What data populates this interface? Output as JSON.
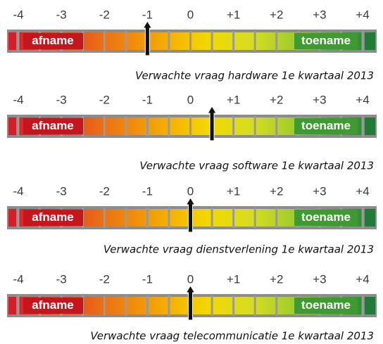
{
  "chart_data": [
    {
      "type": "gauge",
      "title": "Verwachte vraag hardware 1e kwartaal 2013",
      "value": -1,
      "left_label": "afname",
      "right_label": "toename",
      "xlim": [
        -4,
        4
      ],
      "xticks": [
        -4,
        -3,
        -2,
        -1,
        0,
        {
          "value": 1,
          "label": "+1"
        },
        {
          "value": 2,
          "label": "+2"
        },
        {
          "value": 3,
          "label": "+3"
        },
        {
          "value": 4,
          "label": "+4"
        }
      ]
    },
    {
      "type": "gauge",
      "title": "Verwachte vraag software 1e kwartaal 2013",
      "value": 0.5,
      "left_label": "afname",
      "right_label": "toename",
      "xlim": [
        -4,
        4
      ],
      "xticks": [
        -4,
        -3,
        -2,
        -1,
        0,
        {
          "value": 1,
          "label": "+1"
        },
        {
          "value": 2,
          "label": "+2"
        },
        {
          "value": 3,
          "label": "+3"
        },
        {
          "value": 4,
          "label": "+4"
        }
      ]
    },
    {
      "type": "gauge",
      "title": "Verwachte vraag dienstverlening 1e kwartaal 2013",
      "value": 0,
      "left_label": "afname",
      "right_label": "toename",
      "xlim": [
        -4,
        4
      ],
      "xticks": [
        -4,
        -3,
        -2,
        -1,
        0,
        {
          "value": 1,
          "label": "+1"
        },
        {
          "value": 2,
          "label": "+2"
        },
        {
          "value": 3,
          "label": "+3"
        },
        {
          "value": 4,
          "label": "+4"
        }
      ]
    },
    {
      "type": "gauge",
      "title": "Verwachte vraag telecommunicatie 1e kwartaal 2013",
      "value": 0,
      "left_label": "afname",
      "right_label": "toename",
      "xlim": [
        -4,
        4
      ],
      "xticks": [
        -4,
        -3,
        -2,
        -1,
        0,
        {
          "value": 1,
          "label": "+1"
        },
        {
          "value": 2,
          "label": "+2"
        },
        {
          "value": 3,
          "label": "+3"
        },
        {
          "value": 4,
          "label": "+4"
        }
      ]
    }
  ]
}
